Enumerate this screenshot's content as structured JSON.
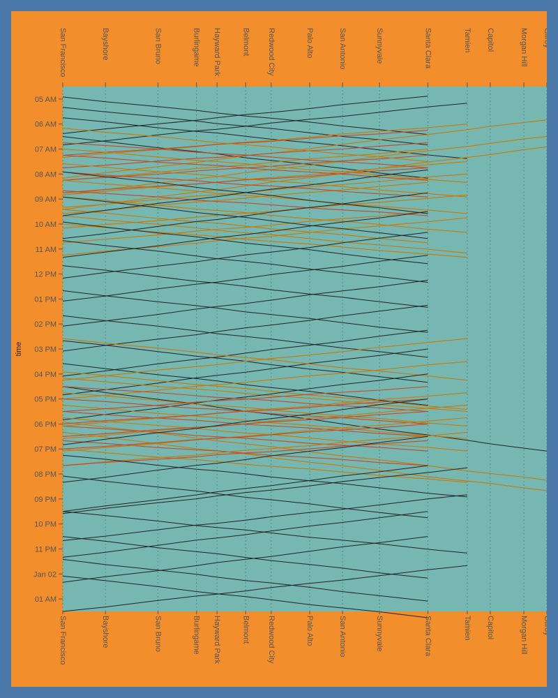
{
  "colors": {
    "frame": "#4a78a8",
    "background": "#f28e2c",
    "plot": "#76b7b2",
    "local": "#222222",
    "limited": "#c87a06",
    "bullet": "#c04a2a",
    "text": "#555555"
  },
  "chart_data": {
    "type": "line",
    "title": "",
    "xlabel": "",
    "ylabel": "time",
    "orientation": "stations-horizontal-time-vertical",
    "grid": true,
    "stations": [
      {
        "name": "San Francisco",
        "mile": 0.0
      },
      {
        "name": "Bayshore",
        "mile": 5.2
      },
      {
        "name": "San Bruno",
        "mile": 11.6
      },
      {
        "name": "Burlingame",
        "mile": 16.3
      },
      {
        "name": "Hayward Park",
        "mile": 18.8
      },
      {
        "name": "Belmont",
        "mile": 22.3
      },
      {
        "name": "Redwood City",
        "mile": 25.4
      },
      {
        "name": "Palo Alto",
        "mile": 30.1
      },
      {
        "name": "San Antonio",
        "mile": 34.1
      },
      {
        "name": "Sunnyvale",
        "mile": 38.6
      },
      {
        "name": "Santa Clara",
        "mile": 44.5
      },
      {
        "name": "Tamien",
        "mile": 49.3
      },
      {
        "name": "Capitol",
        "mile": 52.1
      },
      {
        "name": "Morgan Hill",
        "mile": 56.2
      },
      {
        "name": "Gilroy",
        "mile": 59.0
      }
    ],
    "y_ticks": [
      "05 AM",
      "06 AM",
      "07 AM",
      "08 AM",
      "09 AM",
      "10 AM",
      "11 AM",
      "12 PM",
      "01 PM",
      "02 PM",
      "03 PM",
      "04 PM",
      "05 PM",
      "06 PM",
      "07 PM",
      "08 PM",
      "09 PM",
      "10 PM",
      "11 PM",
      "Jan 02",
      "01 AM"
    ],
    "y_range": [
      "04:30",
      "01:30 (+1 day)"
    ],
    "trains": [
      {
        "type": "local",
        "dir": "S",
        "dep": "04:55",
        "from": "San Francisco",
        "to": "Santa Clara",
        "dur": 90
      },
      {
        "type": "local",
        "dir": "S",
        "dep": "05:20",
        "from": "San Francisco",
        "to": "Santa Clara",
        "dur": 90
      },
      {
        "type": "local",
        "dir": "N",
        "dep": "04:53",
        "from": "Santa Clara",
        "to": "San Francisco",
        "dur": 90
      },
      {
        "type": "local",
        "dir": "N",
        "dep": "05:10",
        "from": "Tamien",
        "to": "San Francisco",
        "dur": 100
      },
      {
        "type": "local",
        "dir": "S",
        "dep": "05:45",
        "from": "San Francisco",
        "to": "Tamien",
        "dur": 98
      },
      {
        "type": "local",
        "dir": "S",
        "dep": "06:30",
        "from": "San Francisco",
        "to": "Santa Clara",
        "dur": 100
      },
      {
        "type": "limited",
        "dir": "N",
        "dep": "06:00",
        "from": "Tamien",
        "to": "San Francisco",
        "dur": 80
      },
      {
        "type": "bullet",
        "dir": "N",
        "dep": "06:15",
        "from": "Santa Clara",
        "to": "San Francisco",
        "dur": 60
      },
      {
        "type": "limited",
        "dir": "N",
        "dep": "05:50",
        "from": "Gilroy",
        "to": "San Francisco",
        "dur": 140
      },
      {
        "type": "limited",
        "dir": "N",
        "dep": "06:30",
        "from": "Gilroy",
        "to": "San Francisco",
        "dur": 140
      },
      {
        "type": "limited",
        "dir": "N",
        "dep": "06:55",
        "from": "Gilroy",
        "to": "San Francisco",
        "dur": 150
      },
      {
        "type": "bullet",
        "dir": "N",
        "dep": "06:45",
        "from": "Santa Clara",
        "to": "San Francisco",
        "dur": 60
      },
      {
        "type": "limited",
        "dir": "N",
        "dep": "07:00",
        "from": "Santa Clara",
        "to": "San Francisco",
        "dur": 75
      },
      {
        "type": "bullet",
        "dir": "N",
        "dep": "07:15",
        "from": "Santa Clara",
        "to": "San Francisco",
        "dur": 60
      },
      {
        "type": "limited",
        "dir": "N",
        "dep": "07:30",
        "from": "Tamien",
        "to": "San Francisco",
        "dur": 80
      },
      {
        "type": "bullet",
        "dir": "N",
        "dep": "07:45",
        "from": "Santa Clara",
        "to": "San Francisco",
        "dur": 60
      },
      {
        "type": "limited",
        "dir": "N",
        "dep": "08:00",
        "from": "Tamien",
        "to": "San Francisco",
        "dur": 80
      },
      {
        "type": "limited",
        "dir": "N",
        "dep": "08:20",
        "from": "Santa Clara",
        "to": "San Francisco",
        "dur": 75
      },
      {
        "type": "limited",
        "dir": "N",
        "dep": "08:50",
        "from": "Tamien",
        "to": "San Francisco",
        "dur": 80
      },
      {
        "type": "limited",
        "dir": "N",
        "dep": "09:30",
        "from": "Santa Clara",
        "to": "San Francisco",
        "dur": 75
      },
      {
        "type": "limited",
        "dir": "S",
        "dep": "06:10",
        "from": "San Francisco",
        "to": "Santa Clara",
        "dur": 80
      },
      {
        "type": "bullet",
        "dir": "S",
        "dep": "06:45",
        "from": "San Francisco",
        "to": "Santa Clara",
        "dur": 60
      },
      {
        "type": "limited",
        "dir": "S",
        "dep": "07:00",
        "from": "San Francisco",
        "to": "Tamien",
        "dur": 80
      },
      {
        "type": "bullet",
        "dir": "S",
        "dep": "07:15",
        "from": "San Francisco",
        "to": "Santa Clara",
        "dur": 60
      },
      {
        "type": "limited",
        "dir": "S",
        "dep": "07:35",
        "from": "San Francisco",
        "to": "Tamien",
        "dur": 80
      },
      {
        "type": "bullet",
        "dir": "S",
        "dep": "07:55",
        "from": "San Francisco",
        "to": "Santa Clara",
        "dur": 60
      },
      {
        "type": "limited",
        "dir": "S",
        "dep": "08:15",
        "from": "San Francisco",
        "to": "Tamien",
        "dur": 80
      },
      {
        "type": "bullet",
        "dir": "S",
        "dep": "08:40",
        "from": "San Francisco",
        "to": "Santa Clara",
        "dur": 60
      },
      {
        "type": "limited",
        "dir": "S",
        "dep": "08:55",
        "from": "San Francisco",
        "to": "Tamien",
        "dur": 85
      },
      {
        "type": "limited",
        "dir": "S",
        "dep": "09:25",
        "from": "San Francisco",
        "to": "Santa Clara",
        "dur": 80
      },
      {
        "type": "limited",
        "dir": "S",
        "dep": "10:00",
        "from": "San Francisco",
        "to": "Tamien",
        "dur": 80
      },
      {
        "type": "limited",
        "dir": "N",
        "dep": "09:45",
        "from": "Tamien",
        "to": "San Francisco",
        "dur": 90
      },
      {
        "type": "limited",
        "dir": "S",
        "dep": "09:40",
        "from": "San Francisco",
        "to": "Tamien",
        "dur": 90
      },
      {
        "type": "local",
        "dir": "S",
        "dep": "07:55",
        "from": "San Francisco",
        "to": "Santa Clara",
        "dur": 100
      },
      {
        "type": "local",
        "dir": "S",
        "dep": "08:55",
        "from": "San Francisco",
        "to": "Santa Clara",
        "dur": 100
      },
      {
        "type": "local",
        "dir": "N",
        "dep": "07:50",
        "from": "Santa Clara",
        "to": "San Francisco",
        "dur": 110
      },
      {
        "type": "local",
        "dir": "N",
        "dep": "08:45",
        "from": "Santa Clara",
        "to": "San Francisco",
        "dur": 110
      },
      {
        "type": "local",
        "dir": "S",
        "dep": "09:55",
        "from": "San Francisco",
        "to": "Santa Clara",
        "dur": 100
      },
      {
        "type": "local",
        "dir": "N",
        "dep": "09:30",
        "from": "Santa Clara",
        "to": "San Francisco",
        "dur": 110
      },
      {
        "type": "local",
        "dir": "S",
        "dep": "10:40",
        "from": "San Francisco",
        "to": "Santa Clara",
        "dur": 100
      },
      {
        "type": "local",
        "dir": "N",
        "dep": "10:20",
        "from": "Santa Clara",
        "to": "San Francisco",
        "dur": 110
      },
      {
        "type": "local",
        "dir": "S",
        "dep": "11:40",
        "from": "San Francisco",
        "to": "Santa Clara",
        "dur": 100
      },
      {
        "type": "local",
        "dir": "N",
        "dep": "11:15",
        "from": "Santa Clara",
        "to": "San Francisco",
        "dur": 110
      },
      {
        "type": "local",
        "dir": "S",
        "dep": "12:40",
        "from": "San Francisco",
        "to": "Santa Clara",
        "dur": 100
      },
      {
        "type": "local",
        "dir": "N",
        "dep": "12:15",
        "from": "Santa Clara",
        "to": "San Francisco",
        "dur": 110
      },
      {
        "type": "local",
        "dir": "S",
        "dep": "13:40",
        "from": "San Francisco",
        "to": "Santa Clara",
        "dur": 100
      },
      {
        "type": "local",
        "dir": "N",
        "dep": "13:15",
        "from": "Santa Clara",
        "to": "San Francisco",
        "dur": 110
      },
      {
        "type": "local",
        "dir": "S",
        "dep": "14:40",
        "from": "San Francisco",
        "to": "Santa Clara",
        "dur": 100
      },
      {
        "type": "local",
        "dir": "N",
        "dep": "14:15",
        "from": "Santa Clara",
        "to": "San Francisco",
        "dur": 110
      },
      {
        "type": "local",
        "dir": "S",
        "dep": "15:35",
        "from": "San Francisco",
        "to": "Santa Clara",
        "dur": 100
      },
      {
        "type": "local",
        "dir": "N",
        "dep": "15:00",
        "from": "Santa Clara",
        "to": "San Francisco",
        "dur": 110
      },
      {
        "type": "limited",
        "dir": "S",
        "dep": "14:35",
        "from": "San Francisco",
        "to": "Tamien",
        "dur": 100
      },
      {
        "type": "limited",
        "dir": "N",
        "dep": "14:35",
        "from": "Tamien",
        "to": "San Francisco",
        "dur": 100
      },
      {
        "type": "limited",
        "dir": "S",
        "dep": "15:55",
        "from": "San Francisco",
        "to": "Tamien",
        "dur": 90
      },
      {
        "type": "limited",
        "dir": "N",
        "dep": "15:30",
        "from": "Tamien",
        "to": "San Francisco",
        "dur": 90
      },
      {
        "type": "limited",
        "dir": "S",
        "dep": "16:10",
        "from": "San Francisco",
        "to": "Tamien",
        "dur": 80
      },
      {
        "type": "local",
        "dir": "S",
        "dep": "16:30",
        "from": "San Francisco",
        "to": "Gilroy",
        "dur": 155
      },
      {
        "type": "local",
        "dir": "N",
        "dep": "16:00",
        "from": "Santa Clara",
        "to": "San Francisco",
        "dur": 110
      },
      {
        "type": "bullet",
        "dir": "S",
        "dep": "16:30",
        "from": "San Francisco",
        "to": "Santa Clara",
        "dur": 60
      },
      {
        "type": "limited",
        "dir": "S",
        "dep": "16:45",
        "from": "San Francisco",
        "to": "Tamien",
        "dur": 80
      },
      {
        "type": "bullet",
        "dir": "S",
        "dep": "17:00",
        "from": "San Francisco",
        "to": "Santa Clara",
        "dur": 60
      },
      {
        "type": "limited",
        "dir": "S",
        "dep": "17:15",
        "from": "San Francisco",
        "to": "Tamien",
        "dur": 80
      },
      {
        "type": "bullet",
        "dir": "S",
        "dep": "17:30",
        "from": "San Francisco",
        "to": "Santa Clara",
        "dur": 60
      },
      {
        "type": "limited",
        "dir": "S",
        "dep": "17:45",
        "from": "San Francisco",
        "to": "Tamien",
        "dur": 80
      },
      {
        "type": "limited",
        "dir": "S",
        "dep": "17:55",
        "from": "San Francisco",
        "to": "Gilroy",
        "dur": 140
      },
      {
        "type": "bullet",
        "dir": "S",
        "dep": "18:05",
        "from": "San Francisco",
        "to": "Santa Clara",
        "dur": 60
      },
      {
        "type": "limited",
        "dir": "S",
        "dep": "18:20",
        "from": "San Francisco",
        "to": "Gilroy",
        "dur": 140
      },
      {
        "type": "bullet",
        "dir": "S",
        "dep": "18:40",
        "from": "San Francisco",
        "to": "Santa Clara",
        "dur": 60
      },
      {
        "type": "limited",
        "dir": "S",
        "dep": "19:00",
        "from": "San Francisco",
        "to": "Tamien",
        "dur": 80
      },
      {
        "type": "bullet",
        "dir": "N",
        "dep": "16:30",
        "from": "Santa Clara",
        "to": "San Francisco",
        "dur": 60
      },
      {
        "type": "limited",
        "dir": "N",
        "dep": "16:45",
        "from": "Tamien",
        "to": "San Francisco",
        "dur": 80
      },
      {
        "type": "bullet",
        "dir": "N",
        "dep": "17:00",
        "from": "Santa Clara",
        "to": "San Francisco",
        "dur": 60
      },
      {
        "type": "limited",
        "dir": "N",
        "dep": "17:15",
        "from": "Tamien",
        "to": "San Francisco",
        "dur": 80
      },
      {
        "type": "bullet",
        "dir": "N",
        "dep": "17:30",
        "from": "Santa Clara",
        "to": "San Francisco",
        "dur": 60
      },
      {
        "type": "limited",
        "dir": "N",
        "dep": "17:45",
        "from": "Tamien",
        "to": "San Francisco",
        "dur": 80
      },
      {
        "type": "bullet",
        "dir": "N",
        "dep": "18:00",
        "from": "Santa Clara",
        "to": "San Francisco",
        "dur": 60
      },
      {
        "type": "limited",
        "dir": "N",
        "dep": "18:20",
        "from": "Tamien",
        "to": "San Francisco",
        "dur": 80
      },
      {
        "type": "bullet",
        "dir": "N",
        "dep": "18:40",
        "from": "Santa Clara",
        "to": "San Francisco",
        "dur": 60
      },
      {
        "type": "local",
        "dir": "N",
        "dep": "17:00",
        "from": "Santa Clara",
        "to": "San Francisco",
        "dur": 110
      },
      {
        "type": "local",
        "dir": "S",
        "dep": "19:15",
        "from": "San Francisco",
        "to": "Tamien",
        "dur": 100
      },
      {
        "type": "local",
        "dir": "N",
        "dep": "18:30",
        "from": "Santa Clara",
        "to": "San Francisco",
        "dur": 110
      },
      {
        "type": "local",
        "dir": "S",
        "dep": "20:05",
        "from": "San Francisco",
        "to": "Santa Clara",
        "dur": 100
      },
      {
        "type": "local",
        "dir": "N",
        "dep": "19:45",
        "from": "Tamien",
        "to": "San Francisco",
        "dur": 110
      },
      {
        "type": "local",
        "dir": "N",
        "dep": "19:40",
        "from": "Santa Clara",
        "to": "San Francisco",
        "dur": 110
      },
      {
        "type": "local",
        "dir": "S",
        "dep": "21:30",
        "from": "San Francisco",
        "to": "Tamien",
        "dur": 100
      },
      {
        "type": "local",
        "dir": "N",
        "dep": "20:50",
        "from": "Tamien",
        "to": "San Francisco",
        "dur": 110
      },
      {
        "type": "local",
        "dir": "S",
        "dep": "22:30",
        "from": "San Francisco",
        "to": "Santa Clara",
        "dur": 100
      },
      {
        "type": "local",
        "dir": "N",
        "dep": "21:30",
        "from": "Santa Clara",
        "to": "San Francisco",
        "dur": 110
      },
      {
        "type": "local",
        "dir": "S",
        "dep": "23:25",
        "from": "San Francisco",
        "to": "Santa Clara",
        "dur": 100
      },
      {
        "type": "local",
        "dir": "N",
        "dep": "22:30",
        "from": "Santa Clara",
        "to": "San Francisco",
        "dur": 110
      },
      {
        "type": "local",
        "dir": "S",
        "dep": "24:05",
        "from": "San Francisco",
        "to": "Santa Clara",
        "dur": 100
      },
      {
        "type": "local",
        "dir": "N",
        "dep": "23:40",
        "from": "Tamien",
        "to": "San Francisco",
        "dur": 110
      }
    ]
  }
}
